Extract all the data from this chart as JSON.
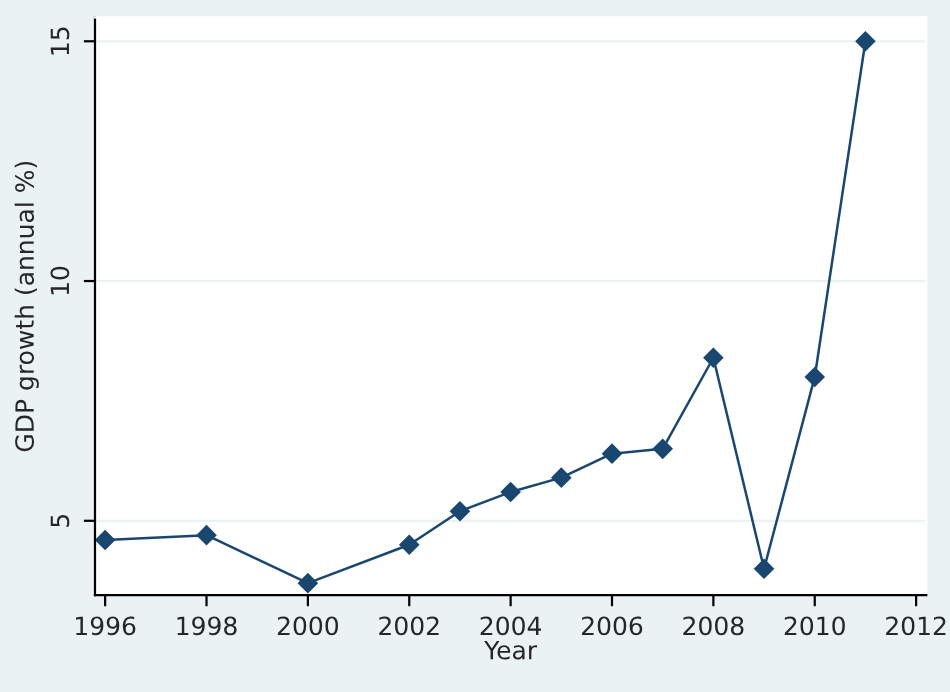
{
  "chart_data": {
    "type": "line",
    "xlabel": "Year",
    "ylabel": "GDP growth (annual %)",
    "x": [
      1996,
      1998,
      2000,
      2002,
      2003,
      2004,
      2005,
      2006,
      2007,
      2008,
      2009,
      2010,
      2011
    ],
    "series": [
      {
        "color": "#1a476f",
        "values": [
          4.6,
          4.7,
          3.7,
          4.5,
          5.2,
          5.6,
          5.9,
          6.4,
          6.5,
          8.4,
          4.0,
          8.0,
          15.0
        ]
      }
    ],
    "xlim": [
      1995.8,
      2012.2
    ],
    "xticks": [
      1996,
      1998,
      2000,
      2002,
      2004,
      2006,
      2008,
      2010,
      2012
    ],
    "ylim": [
      3.45,
      15.5
    ],
    "yticks": [
      5,
      10,
      15
    ],
    "grid": "y",
    "marker": "diamond",
    "line_style": "solid"
  }
}
